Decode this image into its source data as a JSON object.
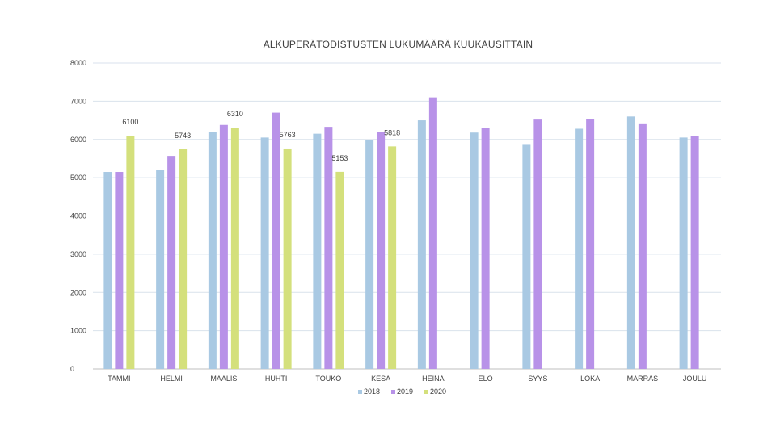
{
  "chart_data": {
    "type": "bar",
    "title": "ALKUPERÄTODISTUSTEN LUKUMÄÄRÄ KUUKAUSITTAIN",
    "categories": [
      "TAMMI",
      "HELMI",
      "MAALIS",
      "HUHTI",
      "TOUKO",
      "KESÄ",
      "HEINÄ",
      "ELO",
      "SYYS",
      "LOKA",
      "MARRAS",
      "JOULU"
    ],
    "ylim": [
      0,
      8000
    ],
    "yticks": [
      0,
      1000,
      2000,
      3000,
      4000,
      5000,
      6000,
      7000,
      8000
    ],
    "grid": true,
    "legend_position": "bottom",
    "series": [
      {
        "name": "2018",
        "color": "#a9c9e3",
        "values": [
          5150,
          5200,
          6200,
          6050,
          6150,
          5980,
          6500,
          6180,
          5880,
          6280,
          6600,
          6050
        ]
      },
      {
        "name": "2019",
        "color": "#b892e8",
        "values": [
          5150,
          5570,
          6380,
          6700,
          6330,
          6200,
          7100,
          6300,
          6520,
          6540,
          6420,
          6100
        ]
      },
      {
        "name": "2020",
        "color": "#d4e07c",
        "values": [
          6100,
          5743,
          6310,
          5763,
          5153,
          5818,
          null,
          null,
          null,
          null,
          null,
          null
        ]
      }
    ],
    "data_labels": [
      {
        "series": 2,
        "index": 0,
        "text": "6100"
      },
      {
        "series": 2,
        "index": 1,
        "text": "5743"
      },
      {
        "series": 2,
        "index": 2,
        "text": "6310"
      },
      {
        "series": 2,
        "index": 3,
        "text": "5763"
      },
      {
        "series": 2,
        "index": 4,
        "text": "5153"
      },
      {
        "series": 2,
        "index": 5,
        "text": "5818"
      }
    ]
  }
}
